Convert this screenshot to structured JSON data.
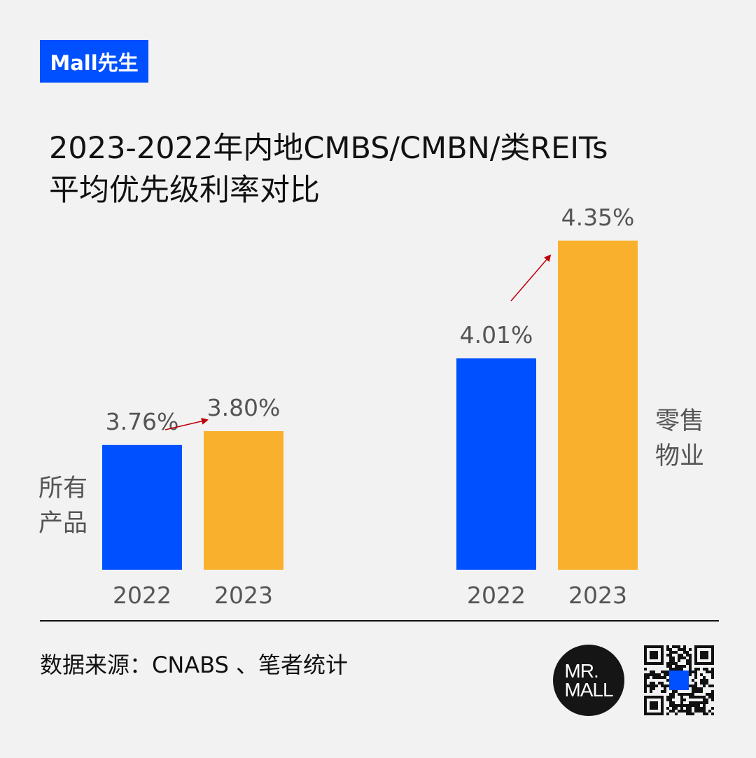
{
  "tag": "Mall先生",
  "title": [
    "2023-2022年内地CMBS/CMBN/类REITs",
    "平均优先级利率对比"
  ],
  "source": "数据来源：CNABS 、笔者统计",
  "logo": {
    "line1": "MR.",
    "line2": "MALL"
  },
  "colors": {
    "2022": "#0050FF",
    "2023": "#F9B12D",
    "arrow": "#C0000A",
    "background": "#F2F2F2"
  },
  "chart_data": {
    "type": "bar",
    "title": "2023-2022年内地CMBS/CMBN/类REITs平均优先级利率对比",
    "groups": [
      {
        "label": "所有产品",
        "label_lines": [
          "所有",
          "产品"
        ],
        "categories": [
          "2022",
          "2023"
        ],
        "values": [
          3.76,
          3.8
        ],
        "value_labels": [
          "3.76%",
          "3.80%"
        ]
      },
      {
        "label": "零售物业",
        "label_lines": [
          "零售",
          "物业"
        ],
        "categories": [
          "2022",
          "2023"
        ],
        "values": [
          4.01,
          4.35
        ],
        "value_labels": [
          "4.01%",
          "4.35%"
        ]
      }
    ],
    "unit": "%",
    "ylim": [
      3.4,
      4.5
    ],
    "grid": false,
    "legend": "none",
    "annotations": [
      "arrow 2022→2023 in each group"
    ]
  }
}
